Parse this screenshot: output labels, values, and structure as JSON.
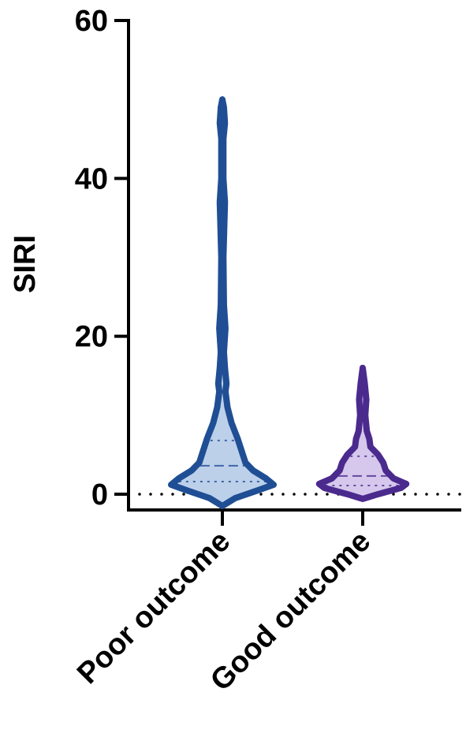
{
  "chart_data": {
    "type": "violin",
    "ylabel": "SIRI",
    "categories": [
      "Poor outcome",
      "Good outcome"
    ],
    "ylim": [
      -2,
      60
    ],
    "yticks": [
      0,
      20,
      40,
      60
    ],
    "reference_line": 0,
    "series": [
      {
        "color": "#1f4e94",
        "fill": "#bdd0ea",
        "median": 3.6,
        "q1": 1.6,
        "q3": 6.8,
        "density_at": [
          -1.5,
          -0.5,
          0.5,
          1.2,
          2,
          3,
          4,
          5,
          7,
          9,
          11,
          13,
          14,
          16,
          18,
          21,
          24,
          30,
          37,
          40,
          45,
          47,
          49,
          50
        ],
        "density": [
          0,
          0.25,
          0.7,
          1.0,
          0.85,
          0.6,
          0.45,
          0.4,
          0.3,
          0.18,
          0.1,
          0.06,
          0.08,
          0.05,
          0.03,
          0.06,
          0.03,
          0.02,
          0.05,
          0.02,
          0.02,
          0.05,
          0.03,
          0
        ]
      },
      {
        "color": "#4b2a8e",
        "fill": "#d5c8ec",
        "median": 2.3,
        "q1": 1.1,
        "q3": 4.8,
        "density_at": [
          -0.6,
          0,
          0.8,
          1.3,
          2,
          3,
          4,
          5,
          6,
          7,
          8,
          10,
          12,
          14,
          16
        ],
        "density": [
          0,
          0.3,
          0.75,
          0.85,
          0.6,
          0.45,
          0.4,
          0.3,
          0.15,
          0.13,
          0.08,
          0.05,
          0.07,
          0.04,
          0
        ]
      }
    ]
  }
}
